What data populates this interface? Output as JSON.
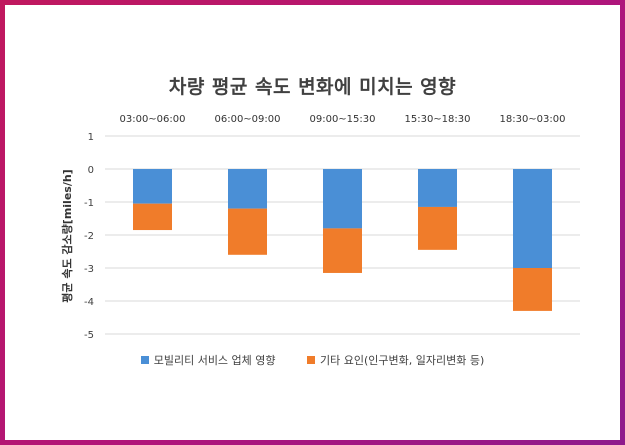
{
  "chart_data": {
    "type": "bar",
    "stacked": true,
    "title": "차량 평균 속도 변화에 미치는 영향",
    "ylabel": "평균 속도 감소량[miles/h]",
    "xlabel": "",
    "categories": [
      "03:00~06:00",
      "06:00~09:00",
      "09:00~15:30",
      "15:30~18:30",
      "18:30~03:00"
    ],
    "category_axis_position": "top",
    "ylim": [
      -5,
      1
    ],
    "yticks": [
      1,
      0,
      -1,
      -2,
      -3,
      -4,
      -5
    ],
    "grid": true,
    "legend_position": "bottom",
    "series": [
      {
        "name": "모빌리티 서비스 업체 영향",
        "color": "#4a8fd6",
        "values": [
          -1.05,
          -1.2,
          -1.8,
          -1.15,
          -3.0
        ]
      },
      {
        "name": "기타 요인(인구변화, 일자리변화 등)",
        "color": "#f07c2a",
        "values": [
          -0.8,
          -1.4,
          -1.35,
          -1.3,
          -1.3
        ]
      }
    ]
  }
}
